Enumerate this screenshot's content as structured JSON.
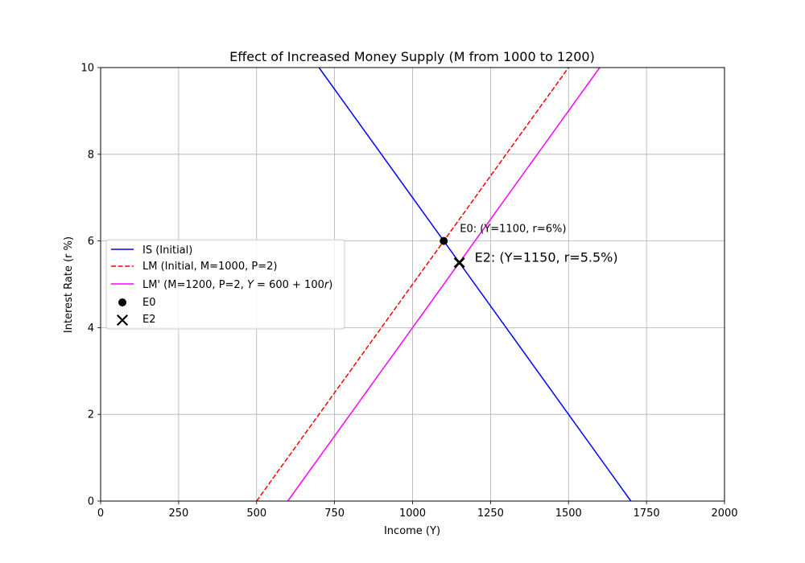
{
  "chart_data": {
    "type": "line",
    "title": "Effect of Increased Money Supply (M from 1000 to 1200)",
    "xlabel": "Income (Y)",
    "ylabel": "Interest Rate (r %)",
    "xlim": [
      0,
      2000
    ],
    "ylim": [
      0,
      10
    ],
    "xticks": [
      0,
      250,
      500,
      750,
      1000,
      1250,
      1500,
      1750,
      2000
    ],
    "yticks": [
      0,
      2,
      4,
      6,
      8,
      10
    ],
    "grid": true,
    "legend_position": "center-left",
    "series": [
      {
        "name": "IS (Initial)",
        "color": "#0000ff",
        "style": "solid",
        "x": [
          700,
          1700
        ],
        "y": [
          10,
          0
        ]
      },
      {
        "name": "LM (Initial, M=1000, P=2)",
        "color": "#ff0000",
        "style": "dashed",
        "x": [
          500,
          1500
        ],
        "y": [
          0,
          10
        ]
      },
      {
        "name": "LM' (M=1200, P=2, Y = 600 + 100r)",
        "legend_plain": "LM' (M=1200, P=2, ",
        "legend_math_Y": "Y",
        "legend_math_rest": " = 600 + 100",
        "legend_math_r": "r",
        "legend_close": ")",
        "color": "#ff00ff",
        "style": "solid",
        "x": [
          600,
          1600
        ],
        "y": [
          0,
          10
        ]
      }
    ],
    "points": [
      {
        "name": "E0",
        "x": 1100,
        "y": 6,
        "marker": "circle",
        "color": "#000000",
        "label": "E0: (Y=1100, r=6%)"
      },
      {
        "name": "E2",
        "x": 1150,
        "y": 5.5,
        "marker": "x",
        "color": "#000000",
        "label": "E2: (Y=1150, r=5.5%)"
      }
    ]
  }
}
